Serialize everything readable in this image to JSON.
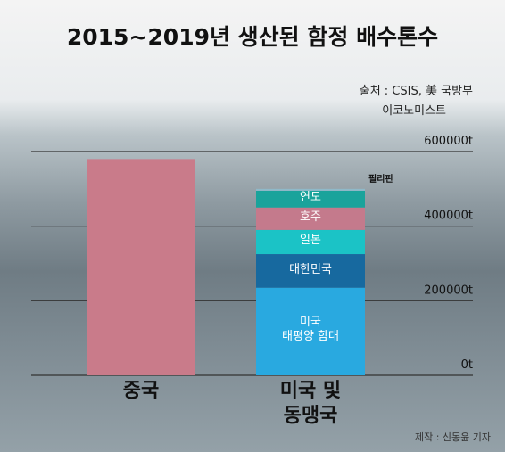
{
  "chart_data": {
    "type": "stacked_bar",
    "title": "2015~2019년 생산된 함정 배수톤수",
    "source": [
      "출처 : CSIS, 美 국방부",
      "이코노미스트"
    ],
    "credit": "제작 : 신동윤 기자",
    "categories": [
      "중국",
      "미국 및\n동맹국"
    ],
    "series": [
      {
        "color": "#c97b8a",
        "values": [
          580000,
          null
        ]
      },
      {
        "name": "미국\n태평양 함대",
        "color": "#29a9e0",
        "values": [
          null,
          235000
        ]
      },
      {
        "name": "대한민국",
        "color": "#17699f",
        "values": [
          null,
          90000
        ]
      },
      {
        "name": "일본",
        "color": "#1bc3c6",
        "values": [
          null,
          65000
        ]
      },
      {
        "name": "호주",
        "color": "#c47a8c",
        "values": [
          null,
          60000
        ]
      },
      {
        "name": "연도",
        "color": "#1aa39b",
        "values": [
          null,
          45000
        ]
      },
      {
        "name": "필리핀",
        "color": "#8fb9c9",
        "values": [
          null,
          5000
        ]
      }
    ],
    "ylim": [
      0,
      600000
    ],
    "yticks": [
      {
        "value": 0,
        "label": "0t"
      },
      {
        "value": 200000,
        "label": "200000t"
      },
      {
        "value": 400000,
        "label": "400000t"
      },
      {
        "value": 600000,
        "label": "600000t"
      }
    ],
    "grid": true
  }
}
